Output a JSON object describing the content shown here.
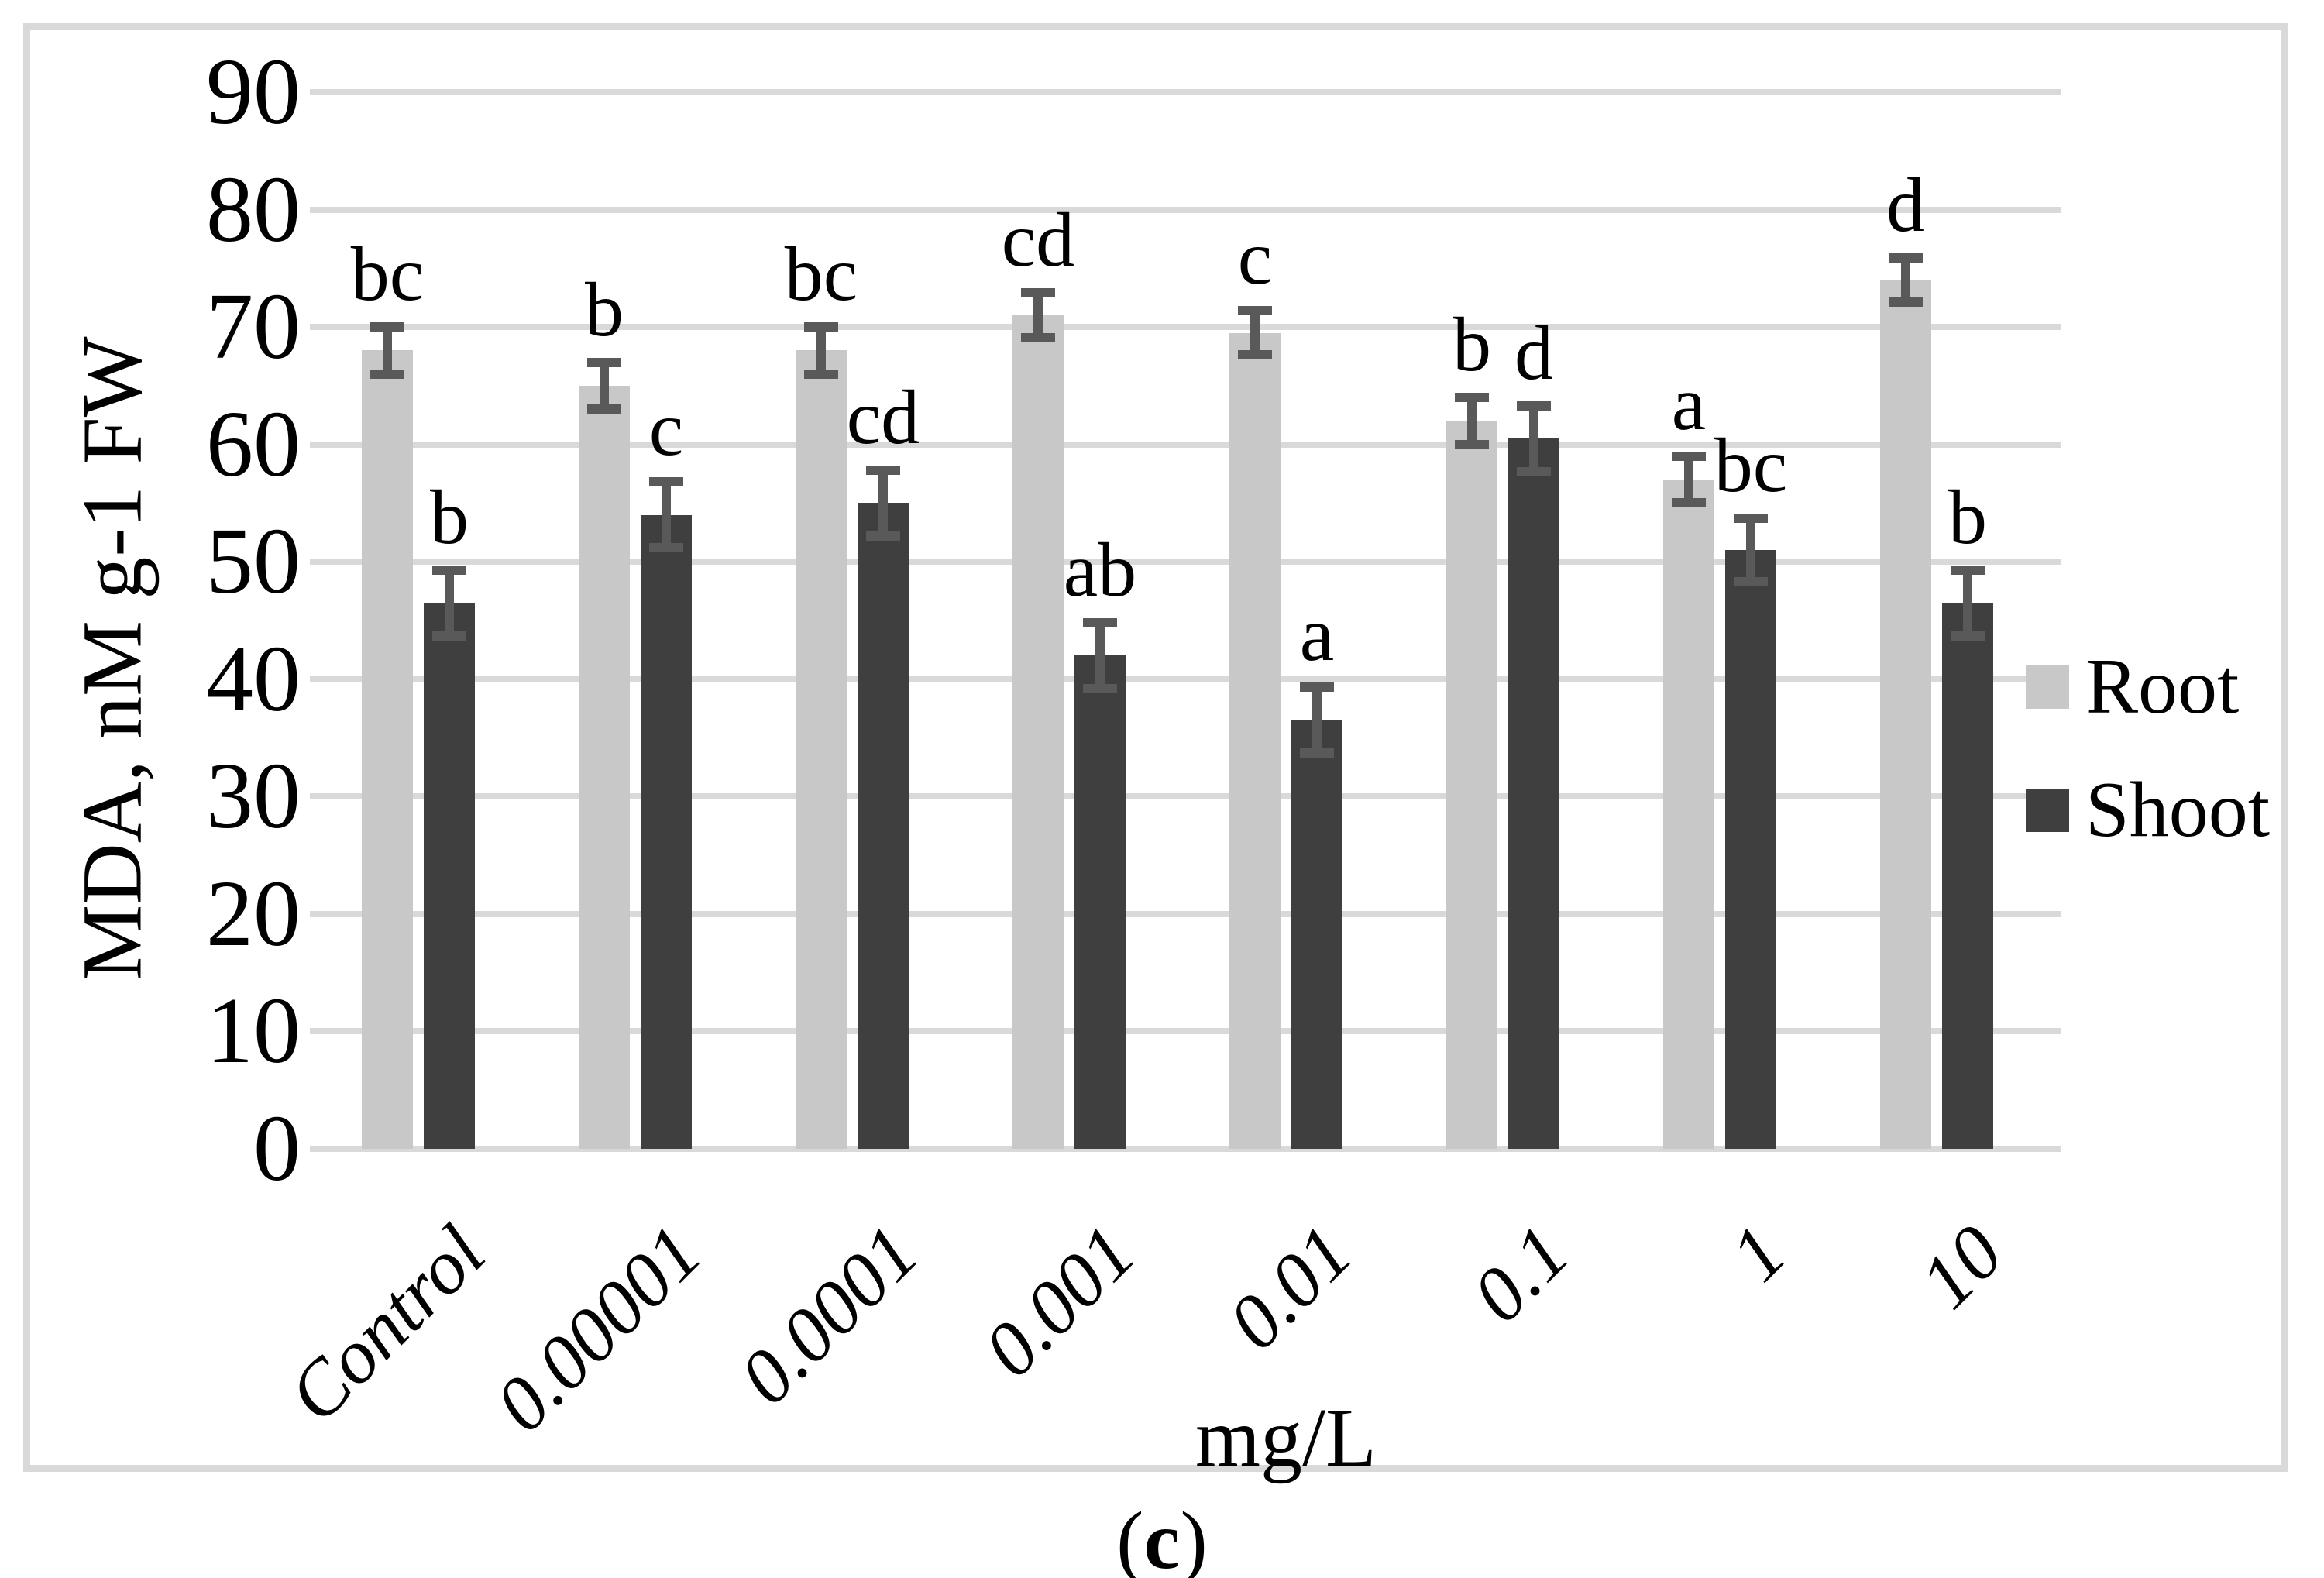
{
  "chart_data": {
    "type": "bar",
    "title": "",
    "xlabel": "mg/L",
    "ylabel": "MDA, nM g-1 FW",
    "ylim": [
      0,
      90
    ],
    "ytick_values": [
      0,
      10,
      20,
      30,
      40,
      50,
      60,
      70,
      80,
      90
    ],
    "grid": true,
    "legend_position": "right",
    "categories": [
      "Control",
      "0.00001",
      "0.0001",
      "0.001",
      "0.01",
      "0.1",
      "1",
      "10"
    ],
    "series": [
      {
        "name": "Root",
        "color": "#c8c8c8",
        "values": [
          68,
          65,
          68,
          71,
          69.5,
          62,
          57,
          74
        ],
        "errors": [
          2,
          2,
          2,
          1.9,
          1.9,
          2,
          2,
          1.9
        ],
        "letters": [
          "bc",
          "b",
          "bc",
          "cd",
          "c",
          "b",
          "a",
          "d"
        ]
      },
      {
        "name": "Shoot",
        "color": "#3f3f3f",
        "values": [
          46.5,
          54,
          55,
          42,
          36.5,
          60.5,
          51,
          46.5
        ],
        "errors": [
          2.8,
          2.8,
          2.8,
          2.8,
          2.8,
          2.8,
          2.7,
          2.8
        ],
        "letters": [
          "b",
          "c",
          "cd",
          "ab",
          "a",
          "d",
          "bc",
          "b"
        ]
      }
    ],
    "error_bar_color": "#595959",
    "gridline_color": "#d9d9d9",
    "frame_color": "#d9d9d9"
  },
  "caption": {
    "prefix": "(",
    "letter": "c",
    "suffix": ")"
  }
}
